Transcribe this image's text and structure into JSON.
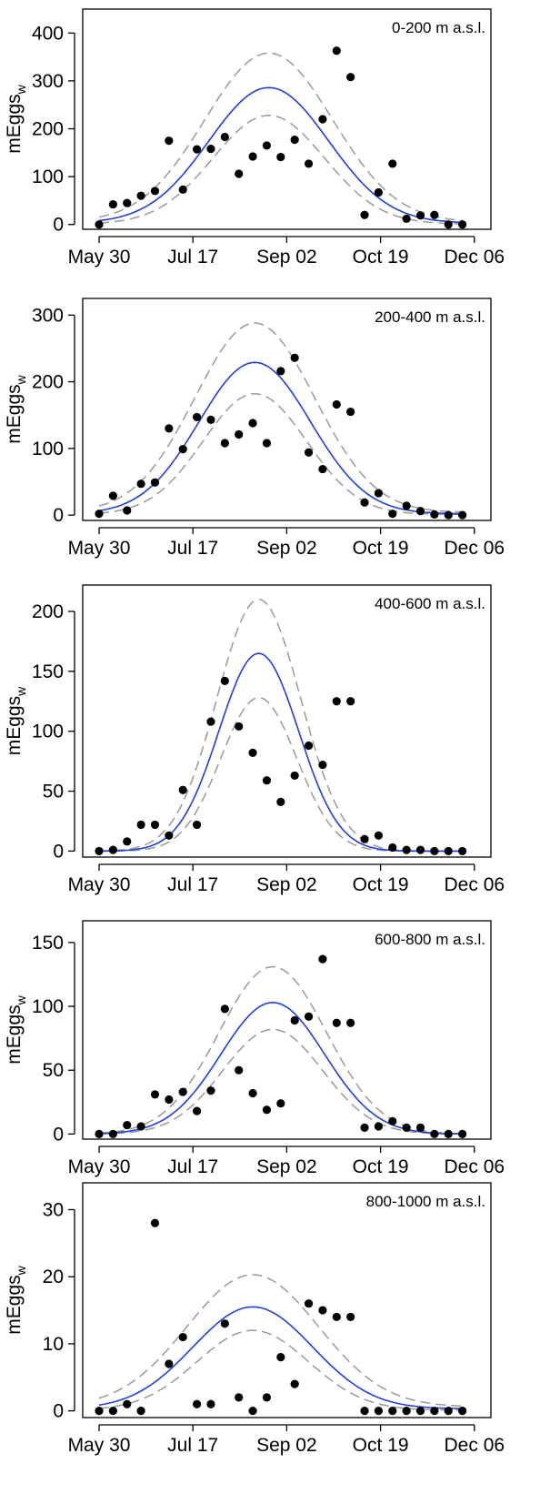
{
  "chart_data": [
    {
      "type": "scatter",
      "panel_label": "0-200 m a.s.l.",
      "ylabel": "mEggs",
      "ylabel_sub": "w",
      "x_ticks": [
        "May 30",
        "Jul 17",
        "Sep 02",
        "Oct 19",
        "Dec 06"
      ],
      "y_ticks": [
        0,
        100,
        200,
        300,
        400
      ],
      "xlim": [
        0,
        190
      ],
      "ylim": [
        -10,
        450
      ],
      "points": [
        [
          0,
          0
        ],
        [
          7,
          42
        ],
        [
          14,
          45
        ],
        [
          21,
          60
        ],
        [
          28,
          70
        ],
        [
          35,
          175
        ],
        [
          42,
          73
        ],
        [
          49,
          157
        ],
        [
          56,
          158
        ],
        [
          63,
          183
        ],
        [
          70,
          106
        ],
        [
          77,
          142
        ],
        [
          84,
          165
        ],
        [
          91,
          141
        ],
        [
          98,
          177
        ],
        [
          105,
          127
        ],
        [
          112,
          220
        ],
        [
          119,
          363
        ],
        [
          126,
          308
        ],
        [
          133,
          20
        ],
        [
          140,
          67
        ],
        [
          147,
          127
        ],
        [
          154,
          12
        ],
        [
          161,
          19
        ],
        [
          168,
          20
        ],
        [
          175,
          0
        ],
        [
          182,
          0
        ]
      ],
      "fit": {
        "peak": 286,
        "center": 85,
        "sigma": 30,
        "floor": 3
      },
      "ci_upper": {
        "peak": 358,
        "center": 85,
        "sigma": 32,
        "floor": 5
      },
      "ci_lower": {
        "peak": 228,
        "center": 85,
        "sigma": 28,
        "floor": 1
      }
    },
    {
      "type": "scatter",
      "panel_label": "200-400 m a.s.l.",
      "ylabel": "mEggs",
      "ylabel_sub": "w",
      "x_ticks": [
        "May 30",
        "Jul 17",
        "Sep 02",
        "Oct 19",
        "Dec 06"
      ],
      "y_ticks": [
        0,
        100,
        200,
        300
      ],
      "xlim": [
        0,
        190
      ],
      "ylim": [
        -8,
        325
      ],
      "points": [
        [
          0,
          2
        ],
        [
          7,
          29
        ],
        [
          14,
          7
        ],
        [
          21,
          47
        ],
        [
          28,
          49
        ],
        [
          35,
          130
        ],
        [
          42,
          99
        ],
        [
          49,
          147
        ],
        [
          56,
          143
        ],
        [
          63,
          108
        ],
        [
          70,
          121
        ],
        [
          77,
          138
        ],
        [
          84,
          108
        ],
        [
          91,
          216
        ],
        [
          98,
          236
        ],
        [
          105,
          94
        ],
        [
          112,
          69
        ],
        [
          119,
          166
        ],
        [
          126,
          155
        ],
        [
          133,
          19
        ],
        [
          140,
          33
        ],
        [
          147,
          2
        ],
        [
          154,
          14
        ],
        [
          161,
          6
        ],
        [
          168,
          1
        ],
        [
          175,
          0
        ],
        [
          182,
          0
        ]
      ],
      "fit": {
        "peak": 229,
        "center": 78,
        "sigma": 28,
        "floor": 2
      },
      "ci_upper": {
        "peak": 288,
        "center": 78,
        "sigma": 30,
        "floor": 4
      },
      "ci_lower": {
        "peak": 182,
        "center": 78,
        "sigma": 26,
        "floor": 1
      }
    },
    {
      "type": "scatter",
      "panel_label": "400-600 m a.s.l.",
      "ylabel": "mEggs",
      "ylabel_sub": "w",
      "x_ticks": [
        "May 30",
        "Jul 17",
        "Sep 02",
        "Oct 19",
        "Dec 06"
      ],
      "y_ticks": [
        0,
        50,
        100,
        150,
        200
      ],
      "xlim": [
        0,
        190
      ],
      "ylim": [
        -5,
        222
      ],
      "points": [
        [
          0,
          0
        ],
        [
          7,
          1
        ],
        [
          14,
          8
        ],
        [
          21,
          22
        ],
        [
          28,
          22
        ],
        [
          35,
          13
        ],
        [
          42,
          51
        ],
        [
          49,
          22
        ],
        [
          56,
          108
        ],
        [
          63,
          142
        ],
        [
          70,
          104
        ],
        [
          77,
          82
        ],
        [
          84,
          59
        ],
        [
          91,
          41
        ],
        [
          98,
          63
        ],
        [
          105,
          88
        ],
        [
          112,
          72
        ],
        [
          119,
          125
        ],
        [
          126,
          125
        ],
        [
          133,
          10
        ],
        [
          140,
          13
        ],
        [
          147,
          3
        ],
        [
          154,
          1
        ],
        [
          161,
          1
        ],
        [
          168,
          0
        ],
        [
          175,
          0
        ],
        [
          182,
          0
        ]
      ],
      "fit": {
        "peak": 165,
        "center": 80,
        "sigma": 20,
        "floor": 0
      },
      "ci_upper": {
        "peak": 210,
        "center": 80,
        "sigma": 21,
        "floor": 0
      },
      "ci_lower": {
        "peak": 128,
        "center": 80,
        "sigma": 19,
        "floor": 0
      }
    },
    {
      "type": "scatter",
      "panel_label": "600-800 m a.s.l.",
      "ylabel": "mEggs",
      "ylabel_sub": "w",
      "x_ticks": [
        "May 30",
        "Jul 17",
        "Sep 02",
        "Oct 19",
        "Dec 06"
      ],
      "y_ticks": [
        0,
        50,
        100,
        150
      ],
      "xlim": [
        0,
        190
      ],
      "ylim": [
        -4,
        167
      ],
      "points": [
        [
          0,
          0
        ],
        [
          7,
          0
        ],
        [
          14,
          7
        ],
        [
          21,
          6
        ],
        [
          28,
          31
        ],
        [
          35,
          27
        ],
        [
          42,
          33
        ],
        [
          49,
          18
        ],
        [
          56,
          34
        ],
        [
          63,
          98
        ],
        [
          70,
          50
        ],
        [
          77,
          32
        ],
        [
          84,
          19
        ],
        [
          91,
          24
        ],
        [
          98,
          89
        ],
        [
          105,
          92
        ],
        [
          112,
          137
        ],
        [
          119,
          87
        ],
        [
          126,
          87
        ],
        [
          133,
          5
        ],
        [
          140,
          6
        ],
        [
          147,
          10
        ],
        [
          154,
          5
        ],
        [
          161,
          5
        ],
        [
          168,
          0
        ],
        [
          175,
          0
        ],
        [
          182,
          0
        ]
      ],
      "fit": {
        "peak": 103,
        "center": 87,
        "sigma": 26,
        "floor": 0
      },
      "ci_upper": {
        "peak": 131,
        "center": 87,
        "sigma": 27,
        "floor": 0
      },
      "ci_lower": {
        "peak": 82,
        "center": 87,
        "sigma": 25,
        "floor": 0
      }
    },
    {
      "type": "scatter",
      "panel_label": "800-1000 m a.s.l.",
      "ylabel": "mEggs",
      "ylabel_sub": "w",
      "x_ticks": [
        "May 30",
        "Jul 17",
        "Sep 02",
        "Oct 19",
        "Dec 06"
      ],
      "y_ticks": [
        0,
        10,
        20,
        30
      ],
      "xlim": [
        0,
        190
      ],
      "ylim": [
        -1,
        34
      ],
      "points": [
        [
          0,
          0
        ],
        [
          7,
          0
        ],
        [
          14,
          1
        ],
        [
          21,
          0
        ],
        [
          28,
          28
        ],
        [
          35,
          7
        ],
        [
          42,
          11
        ],
        [
          49,
          1
        ],
        [
          56,
          1
        ],
        [
          63,
          13
        ],
        [
          70,
          2
        ],
        [
          77,
          0
        ],
        [
          84,
          2
        ],
        [
          91,
          8
        ],
        [
          98,
          4
        ],
        [
          105,
          16
        ],
        [
          112,
          15
        ],
        [
          119,
          14
        ],
        [
          126,
          14
        ],
        [
          133,
          0
        ],
        [
          140,
          0
        ],
        [
          147,
          0
        ],
        [
          154,
          0
        ],
        [
          161,
          0
        ],
        [
          168,
          0
        ],
        [
          175,
          0
        ],
        [
          182,
          0
        ]
      ],
      "fit": {
        "peak": 15.5,
        "center": 77,
        "sigma": 30,
        "floor": 0.3
      },
      "ci_upper": {
        "peak": 20.3,
        "center": 77,
        "sigma": 33,
        "floor": 0.6
      },
      "ci_lower": {
        "peak": 12,
        "center": 77,
        "sigma": 28,
        "floor": 0.1
      }
    }
  ]
}
